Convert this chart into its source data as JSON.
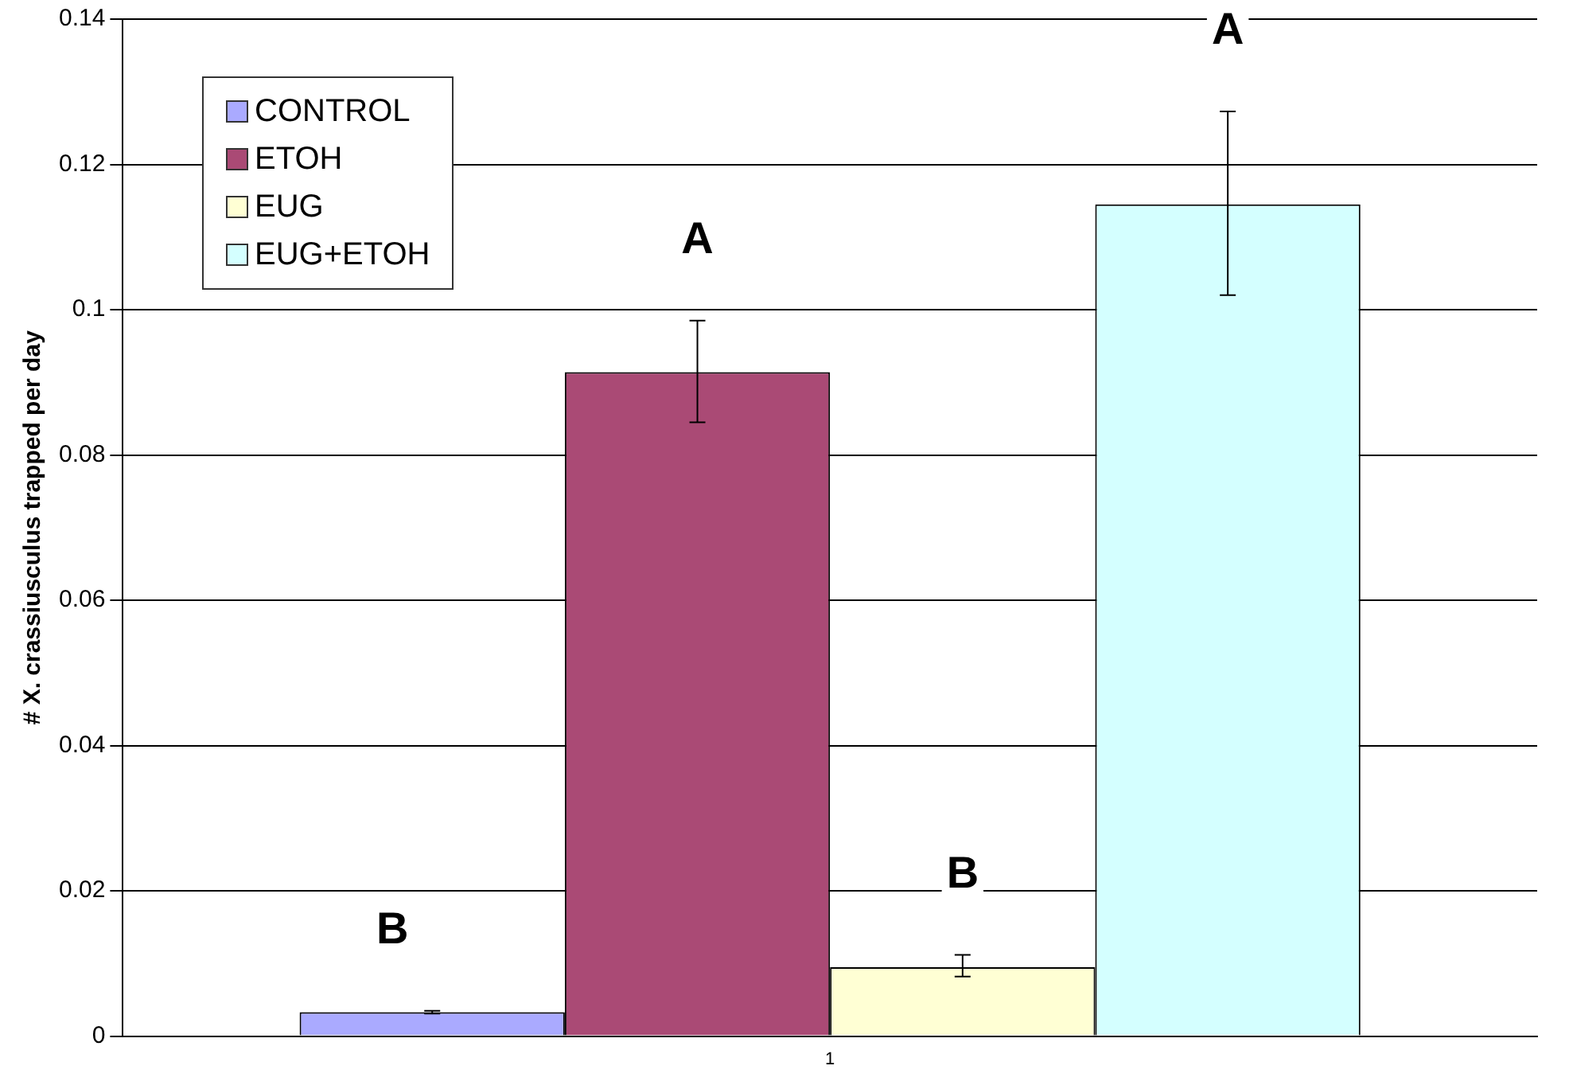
{
  "chart_data": {
    "type": "bar",
    "ylabel": "# X. crassiusculus trapped per day",
    "categories": [
      "1"
    ],
    "series": [
      {
        "name": "CONTROL",
        "color": "#aaaaff",
        "values": [
          0.0033
        ],
        "errors": [
          [
            0.0031,
            0.0035
          ]
        ]
      },
      {
        "name": "ETOH",
        "color": "#aa4a75",
        "values": [
          0.0914
        ],
        "errors": [
          [
            0.0845,
            0.0985
          ]
        ]
      },
      {
        "name": "EUG",
        "color": "#ffffd4",
        "values": [
          0.0095
        ],
        "errors": [
          [
            0.0082,
            0.0112
          ]
        ]
      },
      {
        "name": "EUG+ETOH",
        "color": "#d4ffff",
        "values": [
          0.1145
        ],
        "errors": [
          [
            0.102,
            0.1273
          ]
        ]
      }
    ],
    "annotations": [
      "B",
      "A",
      "B",
      "A"
    ],
    "ylim": [
      0,
      0.14
    ],
    "yticks": [
      0,
      0.02,
      0.04,
      0.06,
      0.08,
      0.1,
      0.12,
      0.14
    ],
    "grid": "y",
    "legend": "top left"
  }
}
